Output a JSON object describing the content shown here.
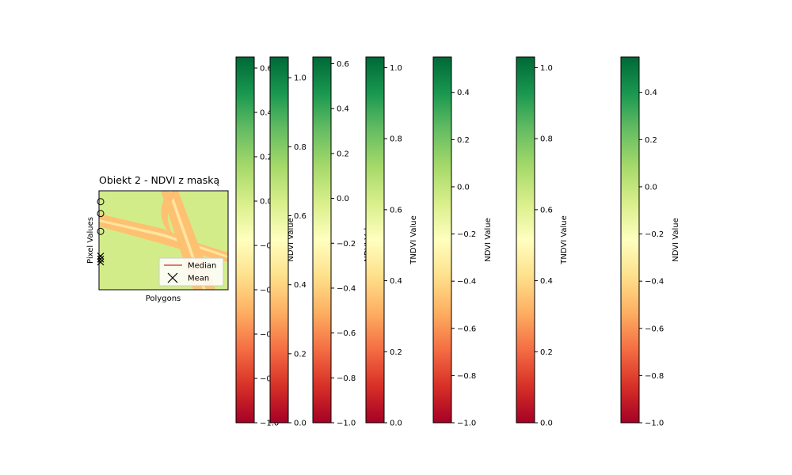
{
  "figure": {
    "background": "#ffffff",
    "colormap": "RdYlGn",
    "colormap_stops": [
      "#a50026",
      "#d73027",
      "#f46d43",
      "#fdae61",
      "#fee08b",
      "#ffffbf",
      "#d9ef8b",
      "#a6d96a",
      "#66bd63",
      "#1a9850",
      "#006837"
    ]
  },
  "chart_data": [
    {
      "type": "image",
      "title": "Obiekt 2 - NDVI z maską",
      "xlabel": "Polygons",
      "ylabel": "Pixel Values",
      "xticks": [],
      "yticks": [],
      "image_colors": {
        "field": "#d3ec8a",
        "road": "#fdc171",
        "road_center": "#fee4a0"
      },
      "markers": {
        "outliers_y_fraction": [
          0.11,
          0.23,
          0.41
        ],
        "mean_markers_y_fraction": [
          0.66,
          0.69,
          0.72
        ],
        "outlier_style": "circle",
        "mean_style": "x"
      },
      "legend": {
        "position": "lower-right",
        "entries": [
          {
            "label": "Median",
            "style": "line",
            "color": "#d62728"
          },
          {
            "label": "Mean",
            "style": "x",
            "color": "#000000"
          }
        ]
      }
    },
    {
      "type": "colorbar",
      "label": "NDVI Value",
      "vmin": -1.0,
      "vmax": 0.65,
      "ticks": [
        -1.0,
        -0.8,
        -0.6,
        -0.4,
        -0.2,
        0.0,
        0.2,
        0.4,
        0.6
      ],
      "tick_labels": [
        "−1.0",
        "−0.8",
        "−0.6",
        "−0.4",
        "−0.2",
        "0.0",
        "0.2",
        "0.4",
        "0.6"
      ]
    },
    {
      "type": "colorbar",
      "label": "TNDVI Value",
      "vmin": 0.0,
      "vmax": 1.06,
      "ticks": [
        0.0,
        0.2,
        0.4,
        0.6,
        0.8,
        1.0
      ],
      "tick_labels": [
        "0.0",
        "0.2",
        "0.4",
        "0.6",
        "0.8",
        "1.0"
      ]
    },
    {
      "type": "colorbar",
      "label": "NDVI Value",
      "vmin": -1.0,
      "vmax": 0.63,
      "ticks": [
        -1.0,
        -0.8,
        -0.6,
        -0.4,
        -0.2,
        0.0,
        0.2,
        0.4,
        0.6
      ],
      "tick_labels": [
        "−1.0",
        "−0.8",
        "−0.6",
        "−0.4",
        "−0.2",
        "0.0",
        "0.2",
        "0.4",
        "0.6"
      ]
    },
    {
      "type": "colorbar",
      "label": "TNDVI Value",
      "vmin": 0.0,
      "vmax": 1.03,
      "ticks": [
        0.0,
        0.2,
        0.4,
        0.6,
        0.8,
        1.0
      ],
      "tick_labels": [
        "0.0",
        "0.2",
        "0.4",
        "0.6",
        "0.8",
        "1.0"
      ]
    },
    {
      "type": "colorbar",
      "label": "NDVI Value",
      "vmin": -1.0,
      "vmax": 0.55,
      "ticks": [
        -1.0,
        -0.8,
        -0.6,
        -0.4,
        -0.2,
        0.0,
        0.2,
        0.4
      ],
      "tick_labels": [
        "−1.0",
        "−0.8",
        "−0.6",
        "−0.4",
        "−0.2",
        "0.0",
        "0.2",
        "0.4"
      ]
    },
    {
      "type": "colorbar",
      "label": "TNDVI Value",
      "vmin": 0.0,
      "vmax": 1.03,
      "ticks": [
        0.0,
        0.2,
        0.4,
        0.6,
        0.8,
        1.0
      ],
      "tick_labels": [
        "0.0",
        "0.2",
        "0.4",
        "0.6",
        "0.8",
        "1.0"
      ]
    },
    {
      "type": "colorbar",
      "label": "NDVI Value",
      "vmin": -1.0,
      "vmax": 0.55,
      "ticks": [
        -1.0,
        -0.8,
        -0.6,
        -0.4,
        -0.2,
        0.0,
        0.2,
        0.4
      ],
      "tick_labels": [
        "−1.0",
        "−0.8",
        "−0.6",
        "−0.4",
        "−0.2",
        "0.0",
        "0.2",
        "0.4"
      ]
    }
  ]
}
